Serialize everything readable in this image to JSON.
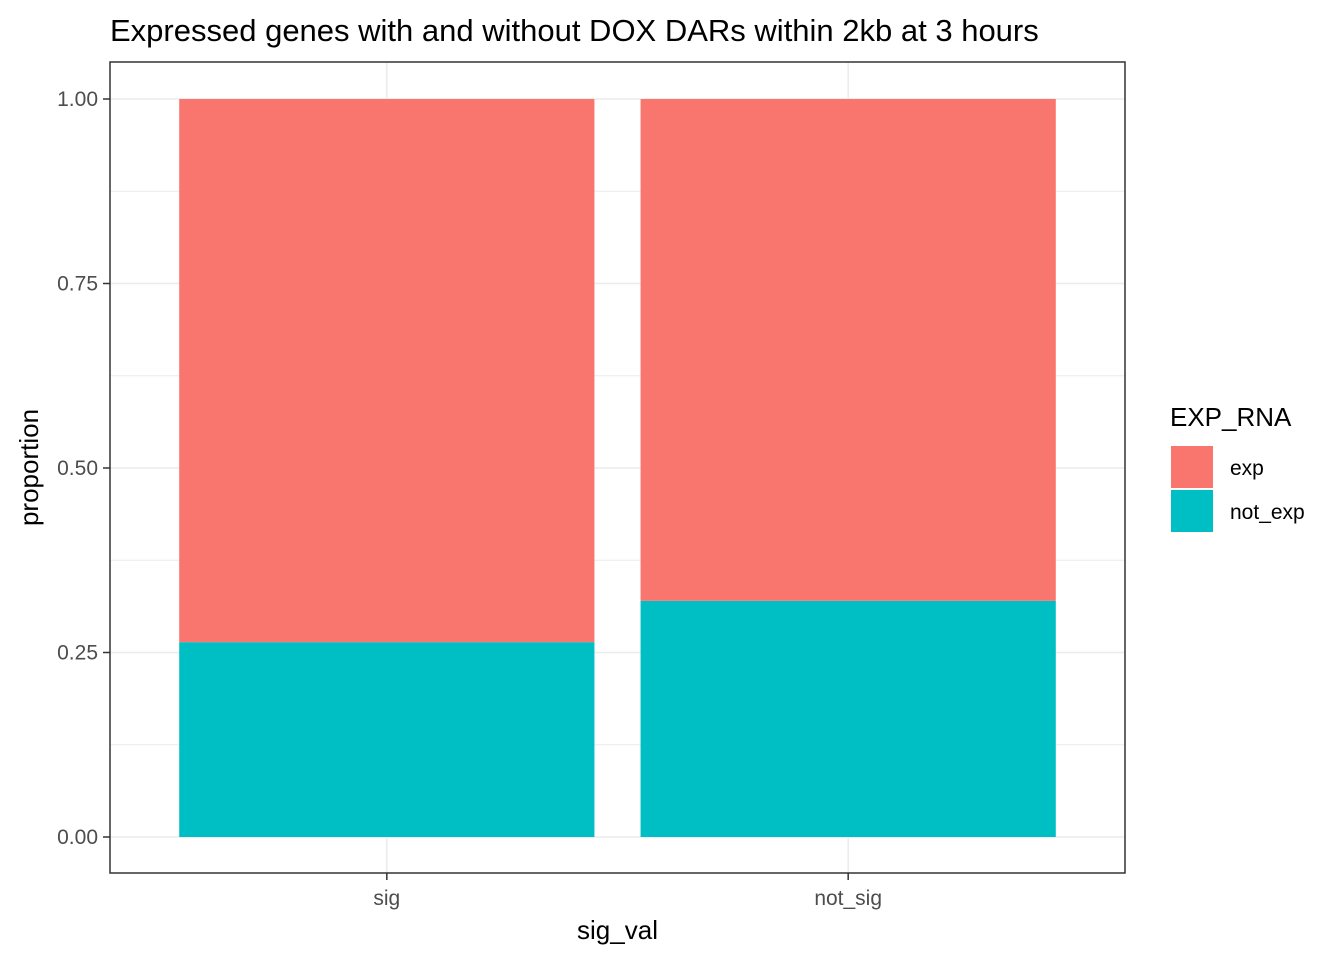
{
  "chart_data": {
    "type": "bar",
    "stacked": true,
    "position": "fill",
    "title": "Expressed genes with and without DOX DARs within 2kb  at 3 hours",
    "xlabel": "sig_val",
    "ylabel": "proportion",
    "categories": [
      "sig",
      "not_sig"
    ],
    "series": [
      {
        "name": "exp",
        "values": [
          0.736,
          0.68
        ],
        "color": "#F8766D"
      },
      {
        "name": "not_exp",
        "values": [
          0.264,
          0.32
        ],
        "color": "#00BFC4"
      }
    ],
    "ylim": [
      0,
      1
    ],
    "y_ticks": [
      0,
      0.25,
      0.5,
      0.75,
      1
    ],
    "y_tick_labels": [
      "0.00",
      "0.25",
      "0.50",
      "0.75",
      "1.00"
    ],
    "grid": true,
    "legend": {
      "title": "EXP_RNA",
      "position": "right",
      "entries": [
        "exp",
        "not_exp"
      ]
    }
  }
}
